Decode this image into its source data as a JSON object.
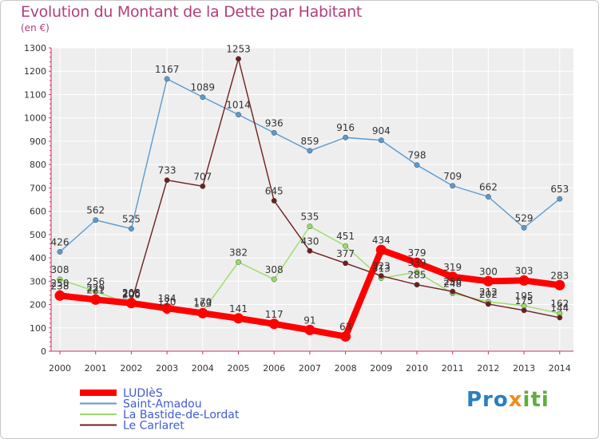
{
  "header": {
    "title": "Evolution du Montant de la Dette par Habitant",
    "subtitle": "(en €)"
  },
  "logo": {
    "text_a": "Pro",
    "text_b": "x",
    "text_c": "iti"
  },
  "chart_data": {
    "type": "line",
    "title": "Evolution du Montant de la Dette par Habitant",
    "subtitle": "(en €)",
    "x": [
      "2000",
      "2001",
      "2002",
      "2003",
      "2004",
      "2005",
      "2006",
      "2007",
      "2008",
      "2009",
      "2010",
      "2011",
      "2012",
      "2013",
      "2014"
    ],
    "ylim": [
      0,
      1300
    ],
    "yticks": [
      0,
      100,
      200,
      300,
      400,
      500,
      600,
      700,
      800,
      900,
      1000,
      1100,
      1200,
      1300
    ],
    "grid": true,
    "legend_position": "bottom-left",
    "series": [
      {
        "name": "LUDIèS",
        "color": "#ff0000",
        "values": [
          238,
          221,
          206,
          184,
          163,
          141,
          117,
          91,
          63,
          434,
          379,
          319,
          300,
          303,
          283
        ]
      },
      {
        "name": "Saint-Amadou",
        "color": "#5a9bd0",
        "values": [
          426,
          562,
          525,
          1167,
          1089,
          1014,
          936,
          859,
          916,
          904,
          798,
          709,
          662,
          529,
          653
        ]
      },
      {
        "name": "La Bastide-de-Lordat",
        "color": "#99dd66",
        "values": [
          308,
          256,
          200,
          170,
          170,
          382,
          308,
          535,
          451,
          313,
          339,
          248,
          212,
          195,
          162
        ]
      },
      {
        "name": "Le Carlaret",
        "color": "#6e1f1f",
        "values": [
          250,
          229,
          208,
          733,
          707,
          1253,
          645,
          430,
          377,
          323,
          285,
          256,
          202,
          175,
          144
        ]
      }
    ]
  }
}
